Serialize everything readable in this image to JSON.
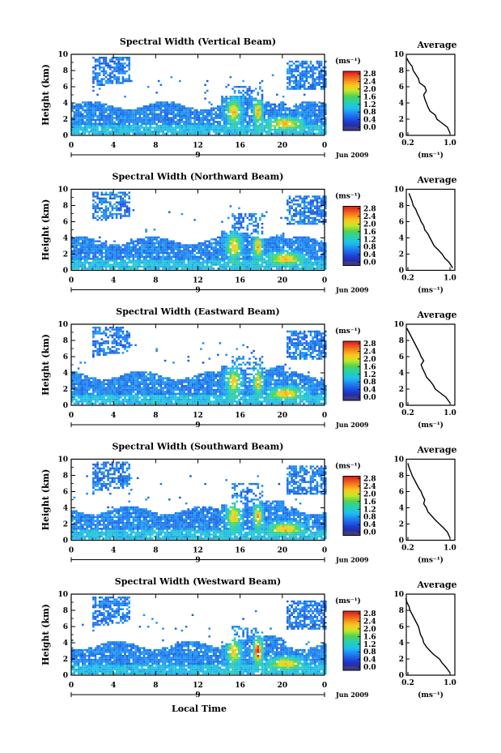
{
  "figure": {
    "xlabel": "Local Time",
    "date_label": "Jun 2009",
    "day_marker": "9",
    "colorbar_unit": "(ms⁻¹)",
    "colorbar_ticks": [
      "2.8",
      "2.4",
      "2.0",
      "1.6",
      "1.2",
      "0.8",
      "0.4",
      "0.0"
    ],
    "colors": {
      "low": "#1e2db4",
      "mid": "#20b4e6",
      "green": "#3cc850",
      "yellow": "#f0e628",
      "orange": "#f08c1e",
      "red": "#e61e1e",
      "bottom_block": "#3c3c8c"
    }
  },
  "chart_data": [
    {
      "type": "heatmap",
      "title": "Spectral Width (Vertical Beam)",
      "ylabel": "Height (km)",
      "xlabel": "Local Time",
      "x_ticks": [
        "0",
        "4",
        "8",
        "12",
        "16",
        "20",
        "0"
      ],
      "y_ticks": [
        "0",
        "2",
        "4",
        "6",
        "8",
        "10"
      ],
      "xlim": [
        0,
        24
      ],
      "ylim": [
        0,
        10
      ],
      "colorbar": {
        "label": "(ms⁻¹)",
        "range": [
          0.0,
          2.8
        ]
      },
      "average_profile": {
        "title": "Average",
        "xlabel": "(ms⁻¹)",
        "x_ticks": [
          "0.2",
          "1.0"
        ],
        "y_ticks": [
          "0",
          "2",
          "4",
          "6",
          "8",
          "10"
        ],
        "xlim": [
          0.2,
          1.0
        ],
        "height": [
          0.3,
          1.0,
          1.5,
          2.0,
          2.5,
          3.0,
          3.5,
          4.0,
          4.5,
          5.0,
          5.5,
          6.0,
          6.5,
          7.0,
          7.5,
          8.0,
          8.5,
          9.0,
          9.5
        ],
        "width": [
          1.0,
          0.95,
          0.85,
          0.75,
          0.72,
          0.62,
          0.58,
          0.55,
          0.52,
          0.5,
          0.55,
          0.52,
          0.42,
          0.4,
          0.35,
          0.3,
          0.28,
          0.22,
          0.18
        ]
      }
    },
    {
      "type": "heatmap",
      "title": "Spectral Width (Northward Beam)",
      "ylabel": "Height (km)",
      "xlabel": "Local Time",
      "x_ticks": [
        "0",
        "4",
        "8",
        "12",
        "16",
        "20",
        "0"
      ],
      "y_ticks": [
        "0",
        "2",
        "4",
        "6",
        "8",
        "10"
      ],
      "xlim": [
        0,
        24
      ],
      "ylim": [
        0,
        10
      ],
      "colorbar": {
        "label": "(ms⁻¹)",
        "range": [
          0.0,
          2.8
        ]
      },
      "average_profile": {
        "title": "Average",
        "xlabel": "(ms⁻¹)",
        "x_ticks": [
          "0.2",
          "1.0"
        ],
        "y_ticks": [
          "0",
          "2",
          "4",
          "6",
          "8",
          "10"
        ],
        "xlim": [
          0.2,
          1.0
        ],
        "height": [
          0.3,
          1.0,
          1.5,
          2.0,
          2.5,
          3.0,
          3.5,
          4.0,
          4.5,
          5.0,
          5.5,
          6.0,
          6.5,
          7.0,
          7.5,
          8.0,
          8.5,
          9.0,
          9.5
        ],
        "width": [
          1.05,
          0.98,
          0.9,
          0.85,
          0.78,
          0.7,
          0.66,
          0.62,
          0.58,
          0.52,
          0.5,
          0.45,
          0.42,
          0.38,
          0.35,
          0.3,
          0.28,
          0.25,
          0.22
        ]
      }
    },
    {
      "type": "heatmap",
      "title": "Spectral Width (Eastward Beam)",
      "ylabel": "Height (km)",
      "xlabel": "Local Time",
      "x_ticks": [
        "0",
        "4",
        "8",
        "12",
        "16",
        "20",
        "0"
      ],
      "y_ticks": [
        "0",
        "2",
        "4",
        "6",
        "8",
        "10"
      ],
      "xlim": [
        0,
        24
      ],
      "ylim": [
        0,
        10
      ],
      "colorbar": {
        "label": "(ms⁻¹)",
        "range": [
          0.0,
          2.8
        ]
      },
      "average_profile": {
        "title": "Average",
        "xlabel": "(ms⁻¹)",
        "x_ticks": [
          "0.2",
          "1.0"
        ],
        "y_ticks": [
          "0",
          "2",
          "4",
          "6",
          "8",
          "10"
        ],
        "xlim": [
          0.2,
          1.0
        ],
        "height": [
          0.3,
          1.0,
          1.5,
          2.0,
          2.5,
          3.0,
          3.5,
          4.0,
          4.5,
          5.0,
          5.5,
          6.0,
          6.5,
          7.0,
          7.5,
          8.0,
          8.5,
          9.0,
          9.5
        ],
        "width": [
          1.0,
          0.92,
          0.82,
          0.72,
          0.68,
          0.62,
          0.55,
          0.52,
          0.48,
          0.45,
          0.5,
          0.45,
          0.42,
          0.38,
          0.34,
          0.3,
          0.26,
          0.22,
          0.18
        ]
      }
    },
    {
      "type": "heatmap",
      "title": "Spectral Width (Southward Beam)",
      "ylabel": "Height (km)",
      "xlabel": "Local Time",
      "x_ticks": [
        "0",
        "4",
        "8",
        "12",
        "16",
        "20",
        "0"
      ],
      "y_ticks": [
        "0",
        "2",
        "4",
        "6",
        "8",
        "10"
      ],
      "xlim": [
        0,
        24
      ],
      "ylim": [
        0,
        10
      ],
      "colorbar": {
        "label": "(ms⁻¹)",
        "range": [
          0.0,
          2.8
        ]
      },
      "average_profile": {
        "title": "Average",
        "xlabel": "(ms⁻¹)",
        "x_ticks": [
          "0.2",
          "1.0"
        ],
        "y_ticks": [
          "0",
          "2",
          "4",
          "6",
          "8",
          "10"
        ],
        "xlim": [
          0.2,
          1.0
        ],
        "height": [
          0.3,
          1.0,
          1.5,
          2.0,
          2.5,
          3.0,
          3.5,
          4.0,
          4.5,
          5.0,
          5.5,
          6.0,
          6.5,
          7.0,
          7.5,
          8.0,
          8.5,
          9.0,
          9.5
        ],
        "width": [
          1.0,
          0.95,
          0.88,
          0.8,
          0.72,
          0.65,
          0.58,
          0.55,
          0.5,
          0.52,
          0.48,
          0.45,
          0.4,
          0.36,
          0.32,
          0.28,
          0.25,
          0.22,
          0.2
        ]
      }
    },
    {
      "type": "heatmap",
      "title": "Spectral Width (Westward Beam)",
      "ylabel": "Height (km)",
      "xlabel": "Local Time",
      "x_ticks": [
        "0",
        "4",
        "8",
        "12",
        "16",
        "20",
        "0"
      ],
      "y_ticks": [
        "0",
        "2",
        "4",
        "6",
        "8",
        "10"
      ],
      "xlim": [
        0,
        24
      ],
      "ylim": [
        0,
        10
      ],
      "colorbar": {
        "label": "(ms⁻¹)",
        "range": [
          0.0,
          2.8
        ]
      },
      "average_profile": {
        "title": "Average",
        "xlabel": "(ms⁻¹)",
        "x_ticks": [
          "0.2",
          "1.0"
        ],
        "y_ticks": [
          "0",
          "2",
          "4",
          "6",
          "8",
          "10"
        ],
        "xlim": [
          0.2,
          1.0
        ],
        "height": [
          0.3,
          1.0,
          1.5,
          2.0,
          2.5,
          3.0,
          3.5,
          4.0,
          4.5,
          5.0,
          5.5,
          6.0,
          6.5,
          7.0,
          7.5,
          8.0,
          8.5,
          9.0,
          9.5
        ],
        "width": [
          1.0,
          0.92,
          0.85,
          0.8,
          0.7,
          0.62,
          0.55,
          0.5,
          0.48,
          0.44,
          0.42,
          0.4,
          0.36,
          0.32,
          0.28,
          0.24,
          0.22,
          0.18,
          0.16
        ]
      }
    }
  ]
}
